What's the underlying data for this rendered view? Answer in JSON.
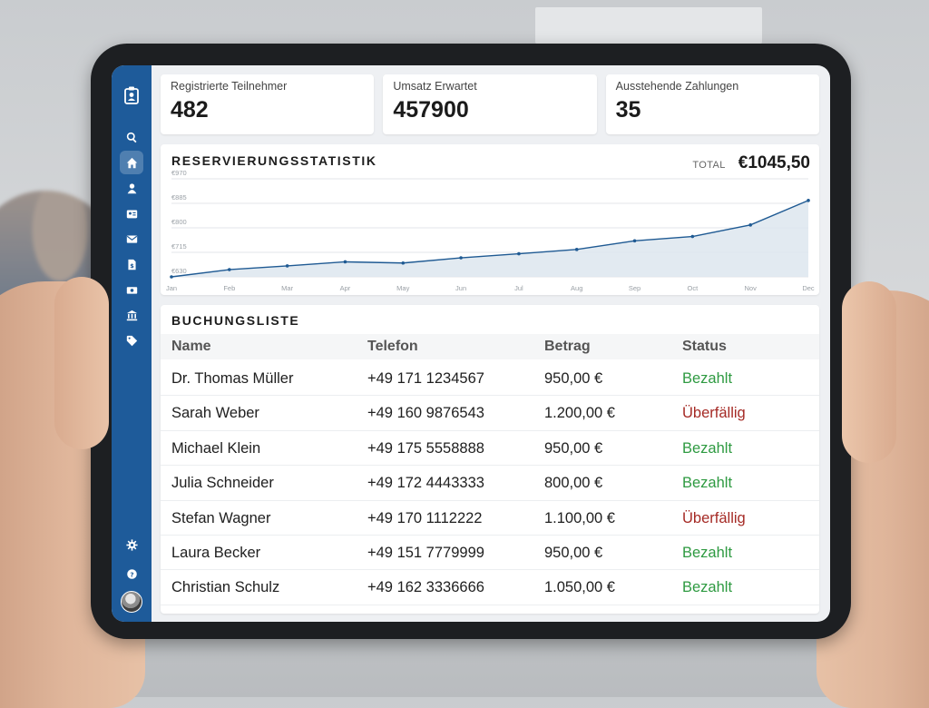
{
  "stats": [
    {
      "label": "Registrierte Teilnehmer",
      "value": "482"
    },
    {
      "label": "Umsatz Erwartet",
      "value": "457900"
    },
    {
      "label": "Ausstehende Zahlungen",
      "value": "35"
    }
  ],
  "chart": {
    "title": "RESERVIERUNGSSTATISTIK",
    "total_label": "TOTAL",
    "total_value": "€1045,50"
  },
  "chart_data": {
    "type": "area",
    "categories": [
      "Jan",
      "Feb",
      "Mar",
      "Apr",
      "May",
      "Jun",
      "Jul",
      "Aug",
      "Sep",
      "Oct",
      "Nov",
      "Dec"
    ],
    "values": [
      630,
      655,
      668,
      682,
      678,
      696,
      710,
      725,
      755,
      770,
      810,
      895
    ],
    "y_ticks": [
      "€970",
      "€885",
      "€800",
      "€715",
      "€630"
    ],
    "ylim": [
      630,
      970
    ],
    "grid": true,
    "colors": {
      "line": "#1f5a93",
      "fill": "#dde6ef"
    }
  },
  "list": {
    "title": "BUCHUNGSLISTE",
    "columns": {
      "name": "Name",
      "phone": "Telefon",
      "amount": "Betrag",
      "status": "Status"
    },
    "rows": [
      {
        "name": "Dr. Thomas Müller",
        "phone": "+49 171 1234567",
        "amount": "950,00 €",
        "status": "Bezahlt"
      },
      {
        "name": "Sarah Weber",
        "phone": "+49 160 9876543",
        "amount": "1.200,00 €",
        "status": "Überfällig"
      },
      {
        "name": "Michael Klein",
        "phone": "+49 175 5558888",
        "amount": "950,00 €",
        "status": "Bezahlt"
      },
      {
        "name": "Julia Schneider",
        "phone": "+49 172 4443333",
        "amount": "800,00 €",
        "status": "Bezahlt"
      },
      {
        "name": "Stefan Wagner",
        "phone": "+49 170 1112222",
        "amount": "1.100,00 €",
        "status": "Überfällig"
      },
      {
        "name": "Laura Becker",
        "phone": "+49 151 7779999",
        "amount": "950,00 €",
        "status": "Bezahlt"
      },
      {
        "name": "Christian Schulz",
        "phone": "+49 162 3336666",
        "amount": "1.050,00 €",
        "status": "Bezahlt"
      }
    ]
  },
  "sidebar": {
    "logo_icon": "badge-icon",
    "items": [
      "search-icon",
      "home-icon",
      "user-icon",
      "id-card-icon",
      "mail-icon",
      "invoice-icon",
      "money-icon",
      "bank-icon",
      "tag-icon"
    ],
    "bottom": [
      "gear-icon",
      "help-icon",
      "avatar"
    ],
    "colors": {
      "sidebar": "#1e5b9a",
      "paid": "#2e9a41",
      "overdue": "#a52a25"
    }
  }
}
